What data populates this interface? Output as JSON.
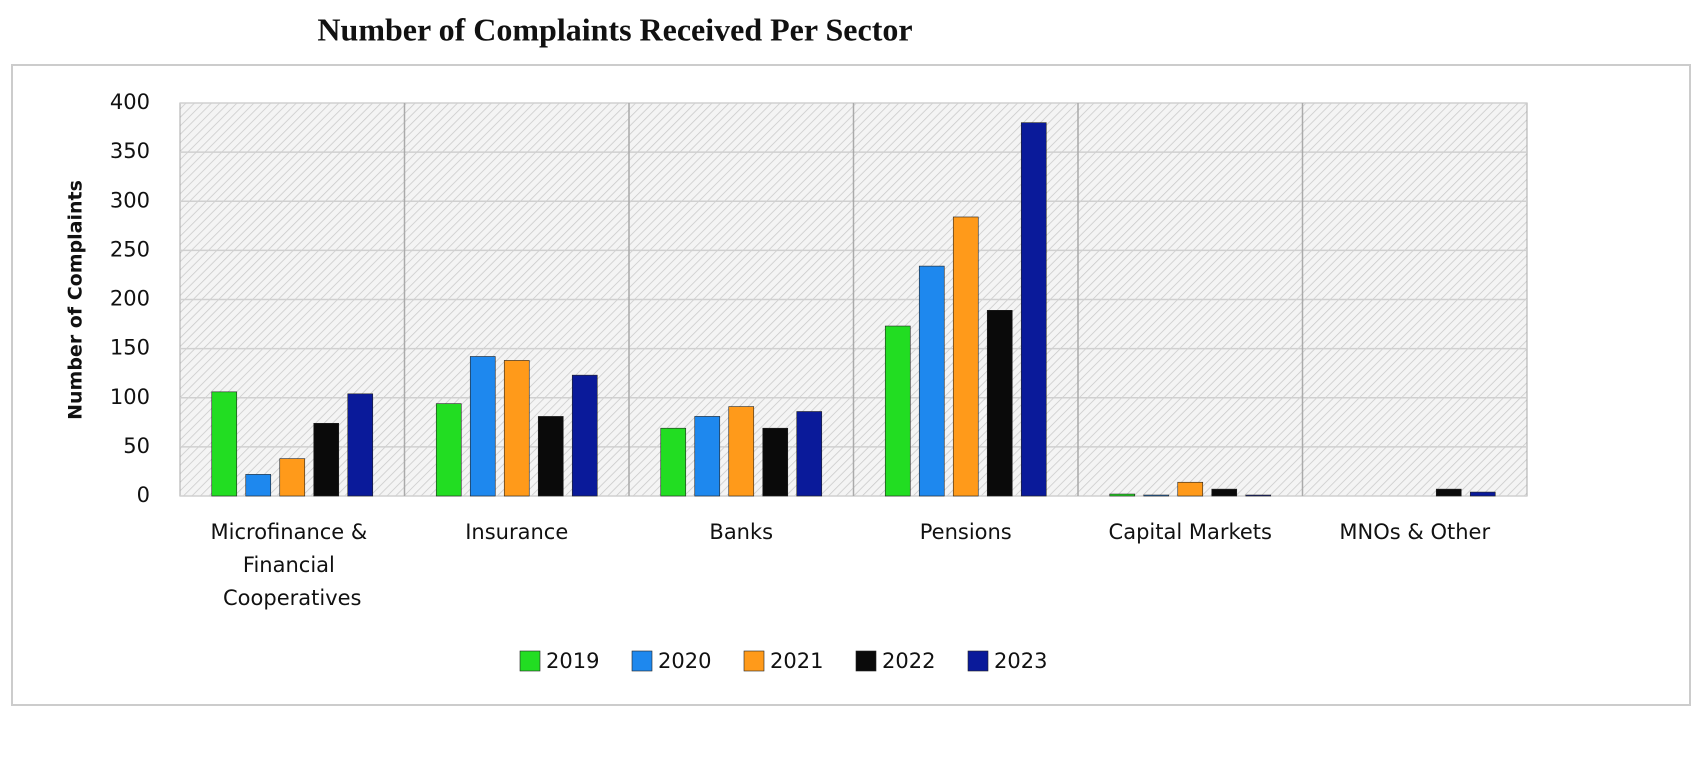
{
  "chart_data": {
    "type": "bar",
    "title": "Number of Complaints Received Per Sector",
    "y_label": "Number of Complaints",
    "categories": [
      "Microfinance & Financial Cooperatives",
      "Insurance",
      "Banks",
      "Pensions",
      "Capital Markets",
      "MNOs & Other"
    ],
    "series": [
      {
        "name": "2019",
        "color": "#22dd22",
        "values": [
          106,
          94,
          69,
          173,
          2,
          0
        ]
      },
      {
        "name": "2020",
        "color": "#1e88ee",
        "values": [
          22,
          142,
          81,
          234,
          1,
          0
        ]
      },
      {
        "name": "2021",
        "color": "#ff9a1a",
        "values": [
          38,
          138,
          91,
          284,
          14,
          0
        ]
      },
      {
        "name": "2022",
        "color": "#0a0a0a",
        "values": [
          74,
          81,
          69,
          189,
          7,
          7
        ]
      },
      {
        "name": "2023",
        "color": "#0a1a9a",
        "values": [
          104,
          123,
          86,
          380,
          1,
          4
        ]
      }
    ],
    "ylim": [
      0,
      400
    ],
    "yticks": [
      0,
      50,
      100,
      150,
      200,
      250,
      300,
      350,
      400
    ],
    "grid": true,
    "legend": "bottom"
  }
}
